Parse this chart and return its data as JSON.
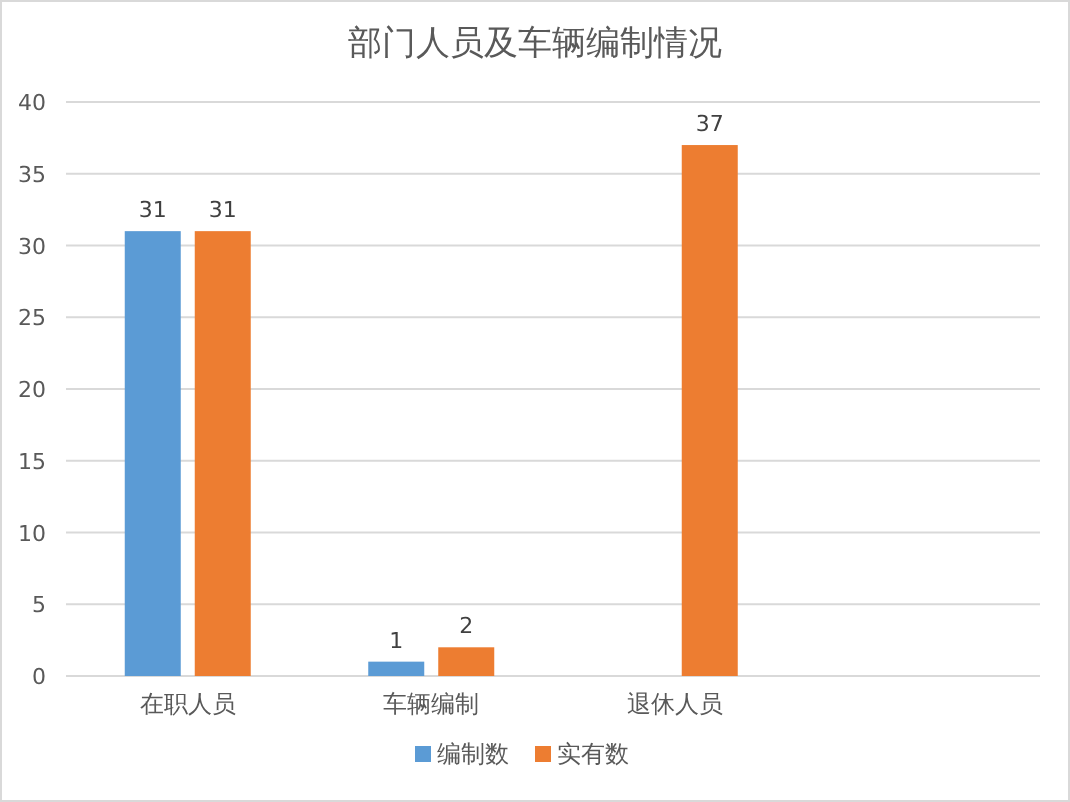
{
  "chart_data": {
    "type": "bar",
    "title": "部门人员及车辆编制情况",
    "categories": [
      "在职人员",
      "车辆编制",
      "退休人员",
      null
    ],
    "series": [
      {
        "name": "编制数",
        "color": "#5b9bd5",
        "values": [
          31,
          1,
          null,
          null
        ]
      },
      {
        "name": "实有数",
        "color": "#ed7d31",
        "values": [
          31,
          2,
          37,
          null
        ]
      }
    ],
    "ylim": [
      0,
      40
    ],
    "yticks": [
      0,
      5,
      10,
      15,
      20,
      25,
      30,
      35,
      40
    ],
    "grid": "y",
    "legend": "bottom",
    "data_labels": true
  }
}
